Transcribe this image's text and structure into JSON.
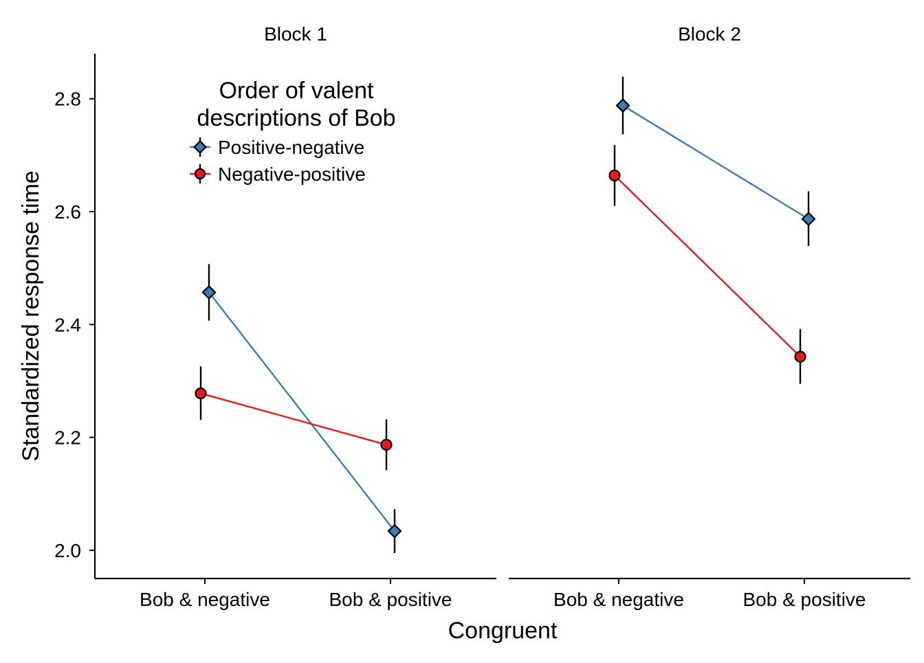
{
  "chart_data": {
    "type": "line",
    "ylabel": "Standardized response time",
    "xlabel": "Congruent",
    "ylim": [
      1.95,
      2.88
    ],
    "yticks": [
      2.0,
      2.2,
      2.4,
      2.6,
      2.8
    ],
    "categories": [
      "Bob & negative",
      "Bob & positive"
    ],
    "grid": false,
    "legend": {
      "title_lines": [
        "Order of valent",
        "descriptions of Bob"
      ],
      "placement": "top-left of first panel"
    },
    "panels": [
      {
        "title": "Block 1",
        "series": [
          {
            "name": "Positive-negative",
            "color": "#377EB8",
            "marker": "diamond",
            "values": [
              2.457,
              2.034
            ],
            "error_low": [
              2.407,
              1.995
            ],
            "error_high": [
              2.507,
              2.073
            ]
          },
          {
            "name": "Negative-positive",
            "color": "#E41A1C",
            "marker": "circle",
            "values": [
              2.278,
              2.187
            ],
            "error_low": [
              2.231,
              2.142
            ],
            "error_high": [
              2.326,
              2.232
            ]
          }
        ]
      },
      {
        "title": "Block 2",
        "series": [
          {
            "name": "Positive-negative",
            "color": "#377EB8",
            "marker": "diamond",
            "values": [
              2.788,
              2.587
            ],
            "error_low": [
              2.737,
              2.539
            ],
            "error_high": [
              2.839,
              2.636
            ]
          },
          {
            "name": "Negative-positive",
            "color": "#E41A1C",
            "marker": "circle",
            "values": [
              2.664,
              2.343
            ],
            "error_low": [
              2.61,
              2.295
            ],
            "error_high": [
              2.718,
              2.392
            ]
          }
        ]
      }
    ]
  }
}
